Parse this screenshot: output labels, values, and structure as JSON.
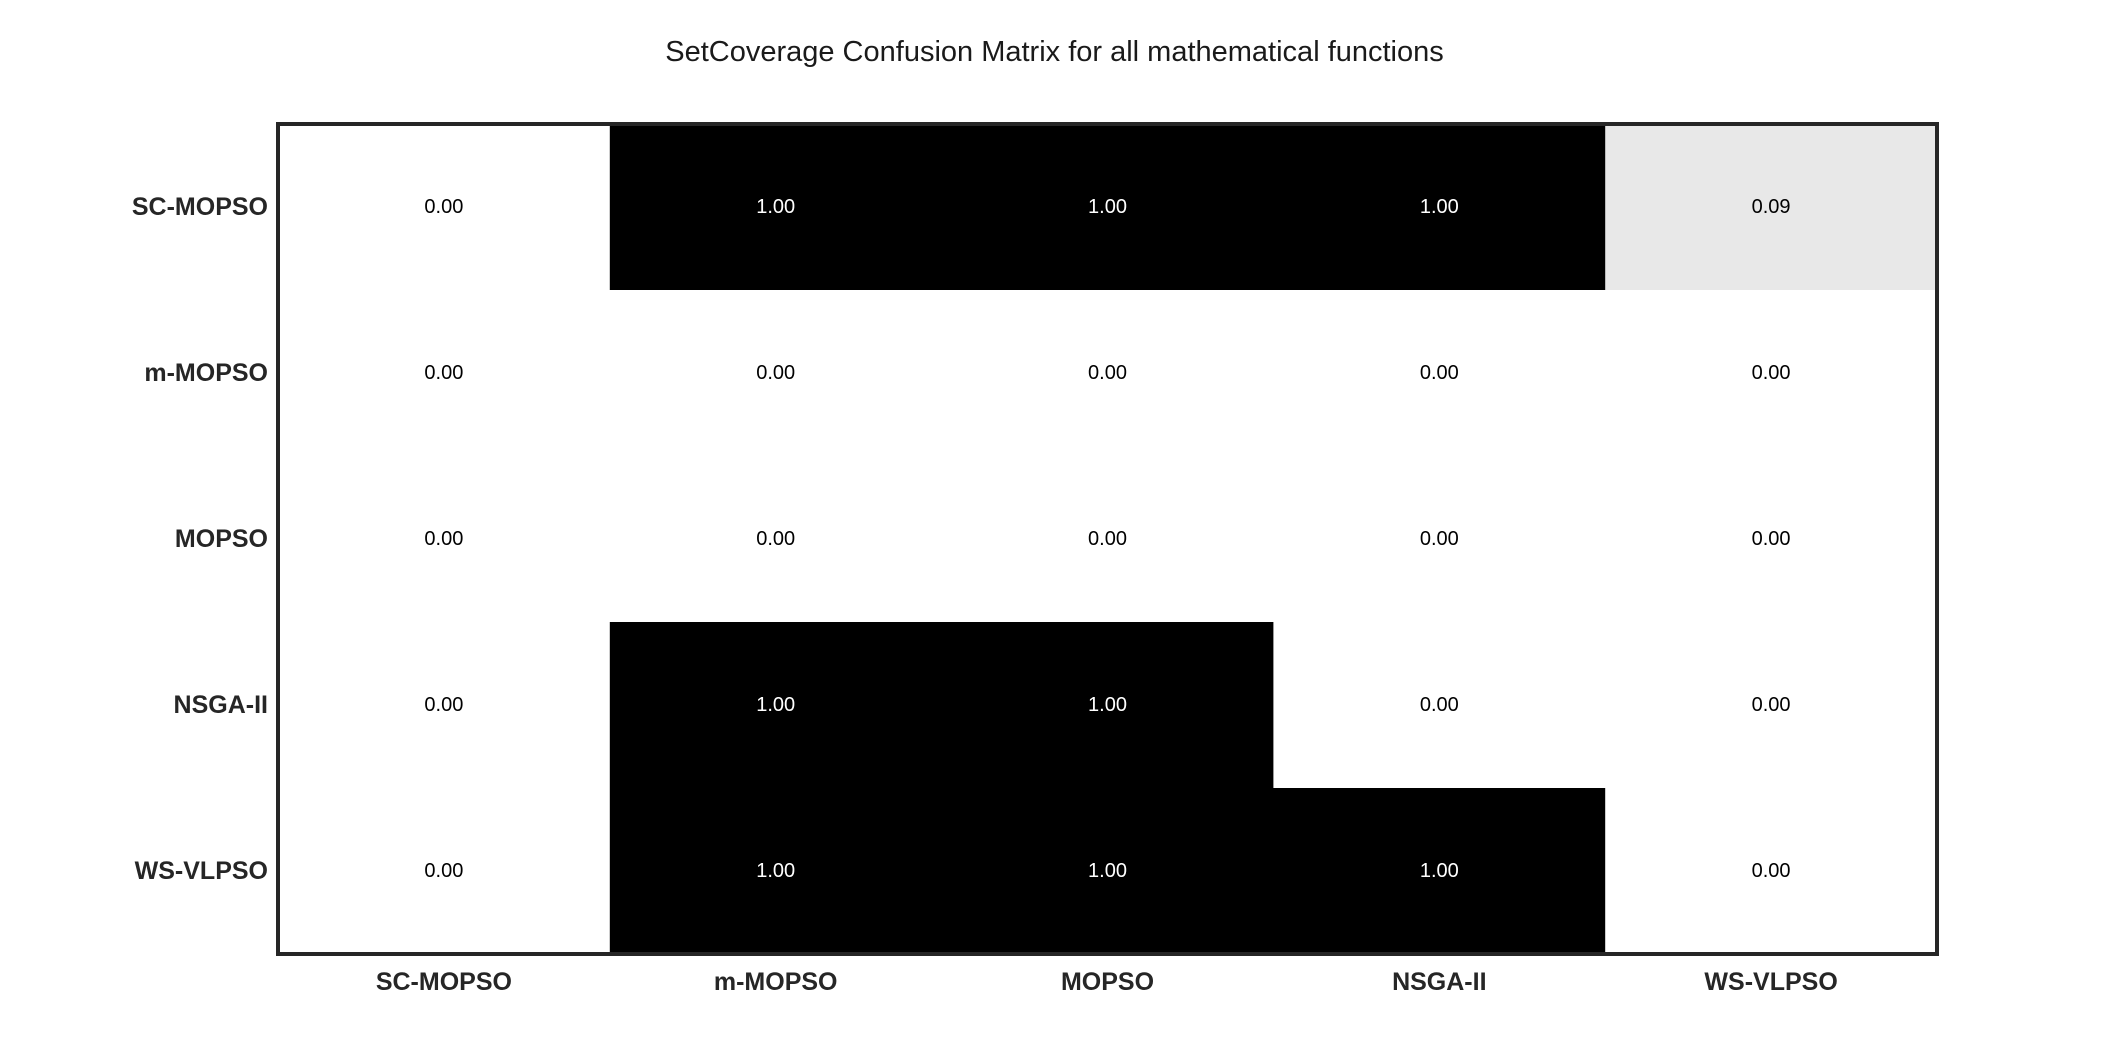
{
  "chart_data": {
    "type": "heatmap",
    "title": "SetCoverage Confusion Matrix for all mathematical functions",
    "xlabel": "",
    "ylabel": "",
    "x_categories": [
      "SC-MOPSO",
      "m-MOPSO",
      "MOPSO",
      "NSGA-II",
      "WS-VLPSO"
    ],
    "y_categories": [
      "SC-MOPSO",
      "m-MOPSO",
      "MOPSO",
      "NSGA-II",
      "WS-VLPSO"
    ],
    "values": [
      [
        0.0,
        1.0,
        1.0,
        1.0,
        0.09
      ],
      [
        0.0,
        0.0,
        0.0,
        0.0,
        0.0
      ],
      [
        0.0,
        0.0,
        0.0,
        0.0,
        0.0
      ],
      [
        0.0,
        1.0,
        1.0,
        0.0,
        0.0
      ],
      [
        0.0,
        1.0,
        1.0,
        1.0,
        0.0
      ]
    ],
    "value_format": "2 decimals",
    "value_range": [
      0,
      1
    ],
    "colormap": {
      "low": "#ffffff",
      "high": "#000000"
    },
    "annotation_colors": {
      "on_light": "#000000",
      "on_dark": "#ffffff"
    },
    "frame_color": "#262626",
    "grid": false,
    "colorbar": false
  }
}
